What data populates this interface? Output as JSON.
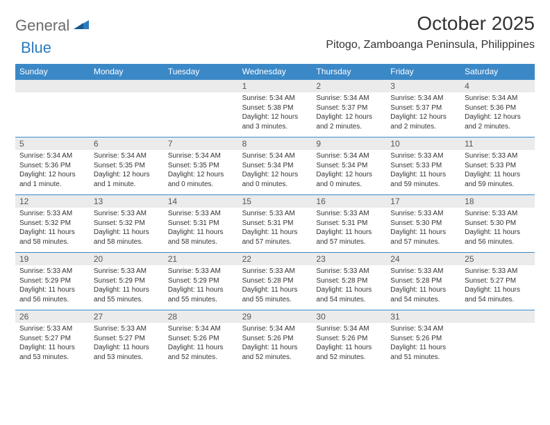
{
  "logo": {
    "part1": "General",
    "part2": "Blue"
  },
  "title": "October 2025",
  "location": "Pitogo, Zamboanga Peninsula, Philippines",
  "colors": {
    "header_bg": "#3b88c7",
    "header_text": "#ffffff",
    "date_bg": "#ebebeb",
    "divider": "#3b88c7",
    "text": "#333333",
    "logo_gray": "#6a6a6a",
    "logo_blue": "#2b7bbf"
  },
  "day_names": [
    "Sunday",
    "Monday",
    "Tuesday",
    "Wednesday",
    "Thursday",
    "Friday",
    "Saturday"
  ],
  "weeks": [
    [
      {
        "date": "",
        "lines": []
      },
      {
        "date": "",
        "lines": []
      },
      {
        "date": "",
        "lines": []
      },
      {
        "date": "1",
        "lines": [
          "Sunrise: 5:34 AM",
          "Sunset: 5:38 PM",
          "Daylight: 12 hours and 3 minutes."
        ]
      },
      {
        "date": "2",
        "lines": [
          "Sunrise: 5:34 AM",
          "Sunset: 5:37 PM",
          "Daylight: 12 hours and 2 minutes."
        ]
      },
      {
        "date": "3",
        "lines": [
          "Sunrise: 5:34 AM",
          "Sunset: 5:37 PM",
          "Daylight: 12 hours and 2 minutes."
        ]
      },
      {
        "date": "4",
        "lines": [
          "Sunrise: 5:34 AM",
          "Sunset: 5:36 PM",
          "Daylight: 12 hours and 2 minutes."
        ]
      }
    ],
    [
      {
        "date": "5",
        "lines": [
          "Sunrise: 5:34 AM",
          "Sunset: 5:36 PM",
          "Daylight: 12 hours and 1 minute."
        ]
      },
      {
        "date": "6",
        "lines": [
          "Sunrise: 5:34 AM",
          "Sunset: 5:35 PM",
          "Daylight: 12 hours and 1 minute."
        ]
      },
      {
        "date": "7",
        "lines": [
          "Sunrise: 5:34 AM",
          "Sunset: 5:35 PM",
          "Daylight: 12 hours and 0 minutes."
        ]
      },
      {
        "date": "8",
        "lines": [
          "Sunrise: 5:34 AM",
          "Sunset: 5:34 PM",
          "Daylight: 12 hours and 0 minutes."
        ]
      },
      {
        "date": "9",
        "lines": [
          "Sunrise: 5:34 AM",
          "Sunset: 5:34 PM",
          "Daylight: 12 hours and 0 minutes."
        ]
      },
      {
        "date": "10",
        "lines": [
          "Sunrise: 5:33 AM",
          "Sunset: 5:33 PM",
          "Daylight: 11 hours and 59 minutes."
        ]
      },
      {
        "date": "11",
        "lines": [
          "Sunrise: 5:33 AM",
          "Sunset: 5:33 PM",
          "Daylight: 11 hours and 59 minutes."
        ]
      }
    ],
    [
      {
        "date": "12",
        "lines": [
          "Sunrise: 5:33 AM",
          "Sunset: 5:32 PM",
          "Daylight: 11 hours and 58 minutes."
        ]
      },
      {
        "date": "13",
        "lines": [
          "Sunrise: 5:33 AM",
          "Sunset: 5:32 PM",
          "Daylight: 11 hours and 58 minutes."
        ]
      },
      {
        "date": "14",
        "lines": [
          "Sunrise: 5:33 AM",
          "Sunset: 5:31 PM",
          "Daylight: 11 hours and 58 minutes."
        ]
      },
      {
        "date": "15",
        "lines": [
          "Sunrise: 5:33 AM",
          "Sunset: 5:31 PM",
          "Daylight: 11 hours and 57 minutes."
        ]
      },
      {
        "date": "16",
        "lines": [
          "Sunrise: 5:33 AM",
          "Sunset: 5:31 PM",
          "Daylight: 11 hours and 57 minutes."
        ]
      },
      {
        "date": "17",
        "lines": [
          "Sunrise: 5:33 AM",
          "Sunset: 5:30 PM",
          "Daylight: 11 hours and 57 minutes."
        ]
      },
      {
        "date": "18",
        "lines": [
          "Sunrise: 5:33 AM",
          "Sunset: 5:30 PM",
          "Daylight: 11 hours and 56 minutes."
        ]
      }
    ],
    [
      {
        "date": "19",
        "lines": [
          "Sunrise: 5:33 AM",
          "Sunset: 5:29 PM",
          "Daylight: 11 hours and 56 minutes."
        ]
      },
      {
        "date": "20",
        "lines": [
          "Sunrise: 5:33 AM",
          "Sunset: 5:29 PM",
          "Daylight: 11 hours and 55 minutes."
        ]
      },
      {
        "date": "21",
        "lines": [
          "Sunrise: 5:33 AM",
          "Sunset: 5:29 PM",
          "Daylight: 11 hours and 55 minutes."
        ]
      },
      {
        "date": "22",
        "lines": [
          "Sunrise: 5:33 AM",
          "Sunset: 5:28 PM",
          "Daylight: 11 hours and 55 minutes."
        ]
      },
      {
        "date": "23",
        "lines": [
          "Sunrise: 5:33 AM",
          "Sunset: 5:28 PM",
          "Daylight: 11 hours and 54 minutes."
        ]
      },
      {
        "date": "24",
        "lines": [
          "Sunrise: 5:33 AM",
          "Sunset: 5:28 PM",
          "Daylight: 11 hours and 54 minutes."
        ]
      },
      {
        "date": "25",
        "lines": [
          "Sunrise: 5:33 AM",
          "Sunset: 5:27 PM",
          "Daylight: 11 hours and 54 minutes."
        ]
      }
    ],
    [
      {
        "date": "26",
        "lines": [
          "Sunrise: 5:33 AM",
          "Sunset: 5:27 PM",
          "Daylight: 11 hours and 53 minutes."
        ]
      },
      {
        "date": "27",
        "lines": [
          "Sunrise: 5:33 AM",
          "Sunset: 5:27 PM",
          "Daylight: 11 hours and 53 minutes."
        ]
      },
      {
        "date": "28",
        "lines": [
          "Sunrise: 5:34 AM",
          "Sunset: 5:26 PM",
          "Daylight: 11 hours and 52 minutes."
        ]
      },
      {
        "date": "29",
        "lines": [
          "Sunrise: 5:34 AM",
          "Sunset: 5:26 PM",
          "Daylight: 11 hours and 52 minutes."
        ]
      },
      {
        "date": "30",
        "lines": [
          "Sunrise: 5:34 AM",
          "Sunset: 5:26 PM",
          "Daylight: 11 hours and 52 minutes."
        ]
      },
      {
        "date": "31",
        "lines": [
          "Sunrise: 5:34 AM",
          "Sunset: 5:26 PM",
          "Daylight: 11 hours and 51 minutes."
        ]
      },
      {
        "date": "",
        "lines": []
      }
    ]
  ]
}
